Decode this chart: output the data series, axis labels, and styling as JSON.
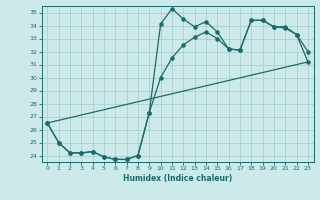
{
  "xlabel": "Humidex (Indice chaleur)",
  "bg_color": "#cceaea",
  "grid_color": "#aacfcf",
  "line_color": "#1a6b6b",
  "xlim": [
    -0.5,
    23.5
  ],
  "ylim": [
    23.5,
    35.5
  ],
  "xticks": [
    0,
    1,
    2,
    3,
    4,
    5,
    6,
    7,
    8,
    9,
    10,
    11,
    12,
    13,
    14,
    15,
    16,
    17,
    18,
    19,
    20,
    21,
    22,
    23
  ],
  "yticks": [
    24,
    25,
    26,
    27,
    28,
    29,
    30,
    31,
    32,
    33,
    34,
    35
  ],
  "line1_x": [
    0,
    1,
    2,
    3,
    4,
    5,
    6,
    7,
    8,
    9,
    10,
    11,
    12,
    13,
    14,
    15,
    16,
    17,
    18,
    19,
    20,
    21,
    22,
    23
  ],
  "line1_y": [
    26.5,
    25.0,
    24.2,
    24.2,
    24.3,
    23.9,
    23.7,
    23.7,
    24.0,
    27.3,
    34.1,
    35.3,
    34.5,
    33.9,
    34.3,
    33.5,
    32.2,
    32.1,
    34.4,
    34.4,
    33.9,
    33.9,
    33.3,
    32.0
  ],
  "line2_x": [
    0,
    1,
    2,
    3,
    4,
    5,
    6,
    7,
    8,
    9,
    10,
    11,
    12,
    13,
    14,
    15,
    16,
    17,
    18,
    19,
    20,
    21,
    22,
    23
  ],
  "line2_y": [
    26.5,
    25.0,
    24.2,
    24.2,
    24.3,
    23.9,
    23.7,
    23.7,
    24.0,
    27.3,
    30.0,
    31.5,
    32.5,
    33.1,
    33.5,
    33.0,
    32.2,
    32.1,
    34.4,
    34.4,
    33.9,
    33.8,
    33.3,
    31.2
  ],
  "line3_x": [
    0,
    23
  ],
  "line3_y": [
    26.5,
    31.2
  ]
}
